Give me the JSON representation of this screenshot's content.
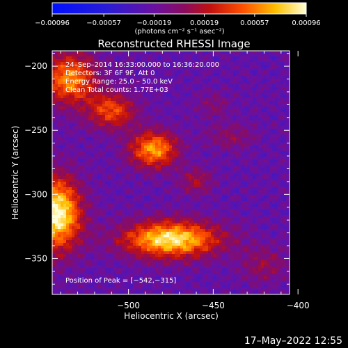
{
  "chart_data": {
    "type": "heatmap",
    "title": "Reconstructed RHESSI Image",
    "xlabel": "Heliocentric X (arcsec)",
    "ylabel": "Heliocentric Y (arcsec)",
    "xlim": [
      -545,
      -405
    ],
    "ylim": [
      -378,
      -188
    ],
    "x_ticks": [
      -500,
      -450,
      -400
    ],
    "x_tick_labels": [
      "−500",
      "−450",
      "−400"
    ],
    "y_ticks": [
      -200,
      -250,
      -300,
      -350
    ],
    "y_tick_labels": [
      "−200",
      "−250",
      "−300",
      "−350"
    ],
    "colorbar": {
      "min": -0.00096,
      "max": 0.00096,
      "tick_values": [
        -0.00096,
        -0.00057,
        -0.00019,
        0.00019,
        0.00057,
        0.00096
      ],
      "tick_labels": [
        "−0.00096",
        "−0.00057",
        "−0.00019",
        "0.00019",
        "0.00057",
        "0.00096"
      ],
      "units": "(photons cm⁻² s⁻¹ asec⁻²)"
    },
    "annotations": [
      "24–Sep–2014 16:33:00.000 to 16:36:20.000",
      "Detectors: 3F 6F 9F, Att 0",
      "Energy Range: 25.0 – 50.0 keV",
      "Clean    Total counts: 1.77E+03"
    ],
    "peak_label": "Position of Peak = [−542,−315]",
    "peak": [
      -542,
      -315
    ]
  },
  "footer": {
    "date": "17–May–2022 12:55"
  }
}
